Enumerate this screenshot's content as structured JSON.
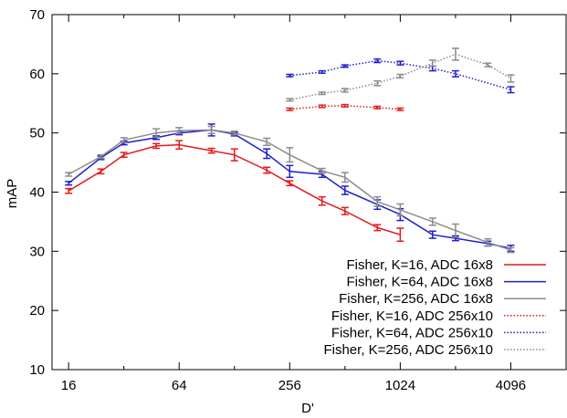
{
  "chart_data": {
    "type": "line",
    "title": "",
    "xlabel": "D'",
    "ylabel": "mAP",
    "x_scale": "log2",
    "xlim": [
      13,
      8192
    ],
    "ylim": [
      10,
      70
    ],
    "x_ticks": [
      16,
      64,
      256,
      1024,
      4096
    ],
    "x_tick_labels": [
      "16",
      "64",
      "256",
      "1024",
      "4096"
    ],
    "y_ticks": [
      10,
      20,
      30,
      40,
      50,
      60,
      70
    ],
    "y_tick_labels": [
      "10",
      "20",
      "30",
      "40",
      "50",
      "60",
      "70"
    ],
    "grid": false,
    "legend_position": "bottom-right",
    "series": [
      {
        "name": "Fisher, K=16, ADC 16x8",
        "color": "#e41a1c",
        "line_style": "solid",
        "points": [
          {
            "x": 16,
            "y": 40.2,
            "err": 0.4
          },
          {
            "x": 24,
            "y": 43.5,
            "err": 0.4
          },
          {
            "x": 32,
            "y": 46.3,
            "err": 0.4
          },
          {
            "x": 48,
            "y": 47.8,
            "err": 0.4
          },
          {
            "x": 64,
            "y": 48.0,
            "err": 0.7
          },
          {
            "x": 96,
            "y": 47.0,
            "err": 0.4
          },
          {
            "x": 128,
            "y": 46.3,
            "err": 1.0
          },
          {
            "x": 192,
            "y": 43.7,
            "err": 0.5
          },
          {
            "x": 256,
            "y": 41.5,
            "err": 0.4
          },
          {
            "x": 384,
            "y": 38.5,
            "err": 0.7
          },
          {
            "x": 512,
            "y": 36.8,
            "err": 0.6
          },
          {
            "x": 768,
            "y": 34.0,
            "err": 0.5
          },
          {
            "x": 1024,
            "y": 32.8,
            "err": 1.1
          }
        ]
      },
      {
        "name": "Fisher, K=64, ADC 16x8",
        "color": "#1f1fcf",
        "line_style": "solid",
        "points": [
          {
            "x": 16,
            "y": 41.5,
            "err": 0.3
          },
          {
            "x": 24,
            "y": 45.8,
            "err": 0.3
          },
          {
            "x": 32,
            "y": 48.3,
            "err": 0.3
          },
          {
            "x": 48,
            "y": 49.2,
            "err": 0.3
          },
          {
            "x": 64,
            "y": 50.0,
            "err": 0.3
          },
          {
            "x": 96,
            "y": 50.5,
            "err": 1.0
          },
          {
            "x": 128,
            "y": 49.8,
            "err": 0.3
          },
          {
            "x": 192,
            "y": 46.5,
            "err": 0.8
          },
          {
            "x": 256,
            "y": 43.5,
            "err": 1.0
          },
          {
            "x": 384,
            "y": 43.0,
            "err": 0.5
          },
          {
            "x": 512,
            "y": 40.3,
            "err": 0.7
          },
          {
            "x": 768,
            "y": 37.9,
            "err": 0.8
          },
          {
            "x": 1024,
            "y": 36.2,
            "err": 1.0
          },
          {
            "x": 1536,
            "y": 32.8,
            "err": 0.6
          },
          {
            "x": 2048,
            "y": 32.2,
            "err": 0.4
          },
          {
            "x": 3072,
            "y": 31.3,
            "err": 0.4
          },
          {
            "x": 4096,
            "y": 30.5,
            "err": 0.5
          }
        ]
      },
      {
        "name": "Fisher, K=256, ADC 16x8",
        "color": "#8c8c8c",
        "line_style": "solid",
        "points": [
          {
            "x": 16,
            "y": 43.0,
            "err": 0.3
          },
          {
            "x": 24,
            "y": 46.0,
            "err": 0.3
          },
          {
            "x": 32,
            "y": 48.8,
            "err": 0.4
          },
          {
            "x": 48,
            "y": 50.0,
            "err": 0.7
          },
          {
            "x": 64,
            "y": 50.4,
            "err": 0.5
          },
          {
            "x": 96,
            "y": 50.5,
            "err": 0.6
          },
          {
            "x": 128,
            "y": 50.0,
            "err": 0.3
          },
          {
            "x": 192,
            "y": 48.5,
            "err": 0.6
          },
          {
            "x": 256,
            "y": 46.3,
            "err": 1.2
          },
          {
            "x": 384,
            "y": 43.6,
            "err": 0.4
          },
          {
            "x": 512,
            "y": 42.5,
            "err": 0.8
          },
          {
            "x": 768,
            "y": 38.4,
            "err": 0.8
          },
          {
            "x": 1024,
            "y": 37.0,
            "err": 1.0
          },
          {
            "x": 1536,
            "y": 35.0,
            "err": 0.6
          },
          {
            "x": 2048,
            "y": 33.5,
            "err": 1.1
          },
          {
            "x": 3072,
            "y": 31.5,
            "err": 0.6
          },
          {
            "x": 4096,
            "y": 30.2,
            "err": 0.4
          }
        ]
      },
      {
        "name": "Fisher, K=16, ADC 256x10",
        "color": "#e41a1c",
        "line_style": "dotted",
        "points": [
          {
            "x": 256,
            "y": 54.0,
            "err": 0.2
          },
          {
            "x": 384,
            "y": 54.5,
            "err": 0.2
          },
          {
            "x": 512,
            "y": 54.6,
            "err": 0.2
          },
          {
            "x": 768,
            "y": 54.3,
            "err": 0.2
          },
          {
            "x": 1024,
            "y": 54.0,
            "err": 0.2
          }
        ]
      },
      {
        "name": "Fisher, K=64, ADC 256x10",
        "color": "#1f1fcf",
        "line_style": "dotted",
        "points": [
          {
            "x": 256,
            "y": 59.7,
            "err": 0.2
          },
          {
            "x": 384,
            "y": 60.3,
            "err": 0.2
          },
          {
            "x": 512,
            "y": 61.3,
            "err": 0.2
          },
          {
            "x": 768,
            "y": 62.2,
            "err": 0.3
          },
          {
            "x": 1024,
            "y": 61.8,
            "err": 0.3
          },
          {
            "x": 1536,
            "y": 60.9,
            "err": 0.4
          },
          {
            "x": 2048,
            "y": 60.0,
            "err": 0.5
          },
          {
            "x": 4096,
            "y": 57.3,
            "err": 0.5
          }
        ]
      },
      {
        "name": "Fisher, K=256, ADC 256x10",
        "color": "#8c8c8c",
        "line_style": "dotted",
        "points": [
          {
            "x": 256,
            "y": 55.6,
            "err": 0.2
          },
          {
            "x": 384,
            "y": 56.7,
            "err": 0.2
          },
          {
            "x": 512,
            "y": 57.2,
            "err": 0.3
          },
          {
            "x": 768,
            "y": 58.4,
            "err": 0.4
          },
          {
            "x": 1024,
            "y": 59.6,
            "err": 0.3
          },
          {
            "x": 1536,
            "y": 61.8,
            "err": 0.5
          },
          {
            "x": 2048,
            "y": 63.3,
            "err": 1.0
          },
          {
            "x": 3072,
            "y": 61.5,
            "err": 0.3
          },
          {
            "x": 4096,
            "y": 59.2,
            "err": 0.6
          }
        ]
      }
    ]
  }
}
